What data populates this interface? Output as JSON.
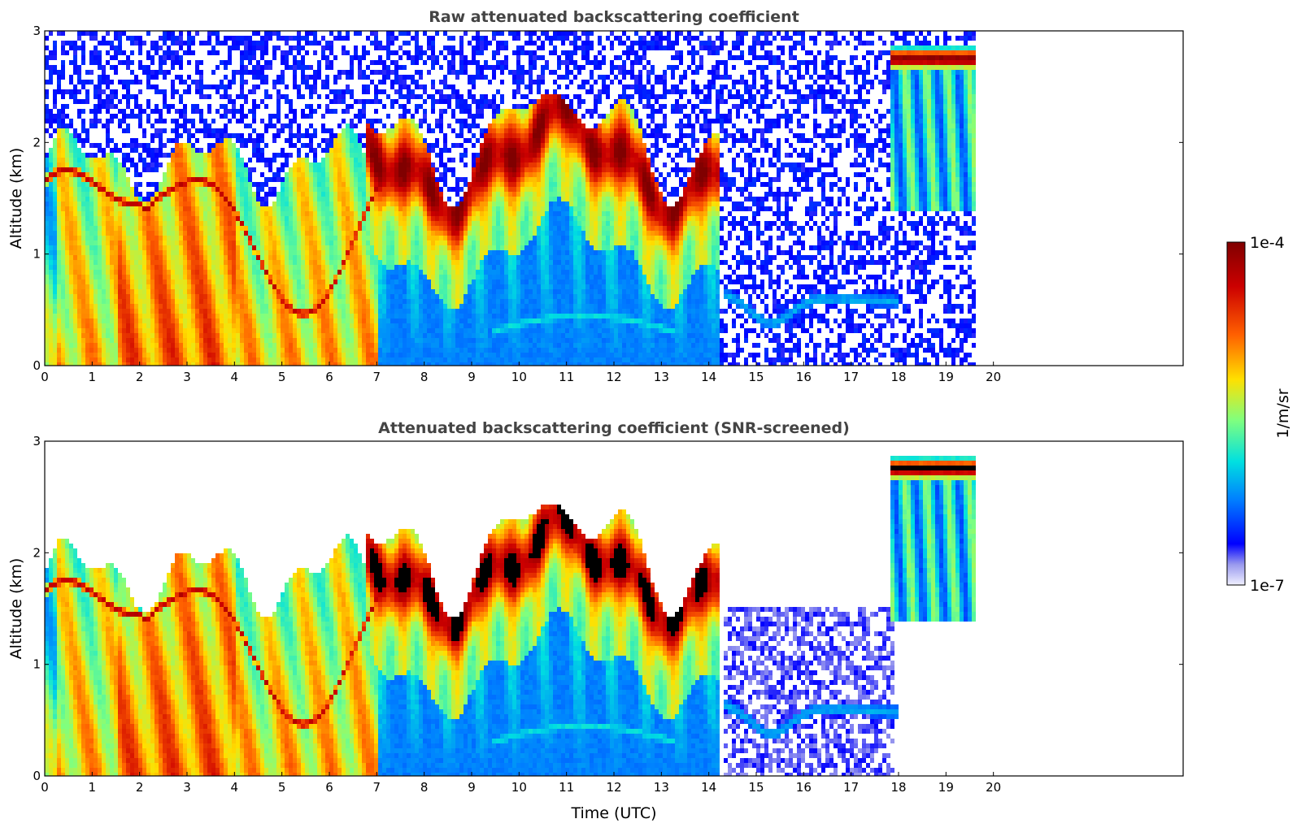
{
  "chart_data": [
    {
      "type": "heatmap",
      "title": "Raw attenuated backscattering coefficient",
      "xlabel": "",
      "ylabel": "Altitude (km)",
      "xlim": [
        0,
        24
      ],
      "ylim": [
        0,
        3
      ],
      "x_ticks": [
        "0",
        "1",
        "2",
        "3",
        "4",
        "5",
        "6",
        "7",
        "8",
        "9",
        "10",
        "11",
        "12",
        "13",
        "14",
        "15",
        "16",
        "17",
        "18",
        "19",
        "20"
      ],
      "y_ticks": [
        "0",
        "1",
        "2",
        "3"
      ],
      "data_end_time": 19.65,
      "features": [
        {
          "time": [
            0,
            6.8
          ],
          "altitude": [
            0,
            2.0
          ],
          "level": "high (green-red), aerosol / boundary layer"
        },
        {
          "time": [
            6.8,
            14.2
          ],
          "altitude": [
            1.2,
            2.6
          ],
          "level": "very high (red), cloud base"
        },
        {
          "time": [
            9.5,
            13.2
          ],
          "altitude": [
            0.2,
            0.6
          ],
          "level": "moderate (cyan), low aerosol layer"
        },
        {
          "time": [
            14.3,
            17.9
          ],
          "altitude": [
            0.4,
            0.8
          ],
          "level": "low (blue-cyan), residual layer"
        },
        {
          "time": [
            17.8,
            19.65
          ],
          "altitude": [
            1.4,
            2.95
          ],
          "level": "very high (dark red) cloud at ~2.8 km with virga"
        }
      ],
      "noise": "random speckle above signal"
    },
    {
      "type": "heatmap",
      "title": "Attenuated backscattering coefficient (SNR-screened)",
      "xlabel": "Time (UTC)",
      "ylabel": "Altitude (km)",
      "xlim": [
        0,
        24
      ],
      "ylim": [
        0,
        3
      ],
      "x_ticks": [
        "0",
        "1",
        "2",
        "3",
        "4",
        "5",
        "6",
        "7",
        "8",
        "9",
        "10",
        "11",
        "12",
        "13",
        "14",
        "15",
        "16",
        "17",
        "18",
        "19",
        "20"
      ],
      "y_ticks": [
        "0",
        "1",
        "2",
        "3"
      ],
      "data_end_time": 19.65,
      "features": [
        {
          "time": [
            0,
            6.8
          ],
          "altitude": [
            0,
            2.0
          ],
          "level": "high (green-red), aerosol / boundary layer"
        },
        {
          "time": [
            6.8,
            14.2
          ],
          "altitude": [
            1.2,
            2.6
          ],
          "level": "very high; saturated pixels shown black"
        },
        {
          "time": [
            9.5,
            13.2
          ],
          "altitude": [
            0.2,
            0.6
          ],
          "level": "moderate (cyan), low aerosol layer"
        },
        {
          "time": [
            14.3,
            17.9
          ],
          "altitude": [
            0.4,
            0.8
          ],
          "level": "low (blue-cyan), residual layer"
        },
        {
          "time": [
            17.8,
            19.65
          ],
          "altitude": [
            1.4,
            2.95
          ],
          "level": "saturated (black) cloud at ~2.8 km with virga"
        }
      ],
      "noise": "removed (white where SNR is low)"
    }
  ],
  "colorbar": {
    "label": "1/m/sr",
    "max_label": "1e-4",
    "min_label": "1e-7",
    "colors": [
      "#f0f0ff",
      "#9999ee",
      "#0000ff",
      "#0080ff",
      "#00e0e0",
      "#7fff7f",
      "#ffe000",
      "#ff6000",
      "#cc0000",
      "#800000"
    ]
  }
}
